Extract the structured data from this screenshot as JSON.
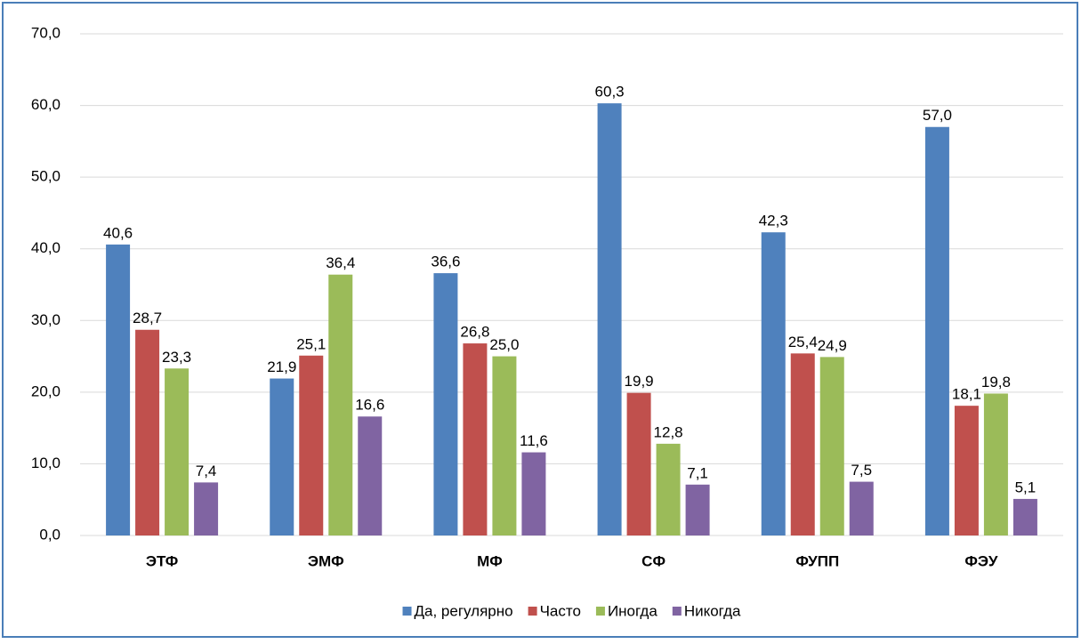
{
  "chart_data": {
    "type": "bar",
    "categories": [
      "ЭТФ",
      "ЭМФ",
      "МФ",
      "СФ",
      "ФУПП",
      "ФЭУ"
    ],
    "series": [
      {
        "name": "Да, регулярно",
        "color": "#4f81bd",
        "values": [
          40.6,
          21.9,
          36.6,
          60.3,
          42.3,
          57.0
        ],
        "value_labels": [
          "40,6",
          "21,9",
          "36,6",
          "60,3",
          "42,3",
          "57,0"
        ]
      },
      {
        "name": "Часто",
        "color": "#c0504d",
        "values": [
          28.7,
          25.1,
          26.8,
          19.9,
          25.4,
          18.1
        ],
        "value_labels": [
          "28,7",
          "25,1",
          "26,8",
          "19,9",
          "25,4",
          "18,1"
        ]
      },
      {
        "name": "Иногда",
        "color": "#9bbb59",
        "values": [
          23.3,
          36.4,
          25.0,
          12.8,
          24.9,
          19.8
        ],
        "value_labels": [
          "23,3",
          "36,4",
          "25,0",
          "12,8",
          "24,9",
          "19,8"
        ]
      },
      {
        "name": "Никогда",
        "color": "#8064a2",
        "values": [
          7.4,
          16.6,
          11.6,
          7.1,
          7.5,
          5.1
        ],
        "value_labels": [
          "7,4",
          "16,6",
          "11,6",
          "7,1",
          "7,5",
          "5,1"
        ]
      }
    ],
    "ylim": [
      0,
      70
    ],
    "yticks": [
      {
        "value": 0,
        "label": "0,0"
      },
      {
        "value": 10,
        "label": "10,0"
      },
      {
        "value": 20,
        "label": "20,0"
      },
      {
        "value": 30,
        "label": "30,0"
      },
      {
        "value": 40,
        "label": "40,0"
      },
      {
        "value": 50,
        "label": "50,0"
      },
      {
        "value": 60,
        "label": "60,0"
      },
      {
        "value": 70,
        "label": "70,0"
      }
    ],
    "grid": true,
    "legend": "bottom"
  }
}
